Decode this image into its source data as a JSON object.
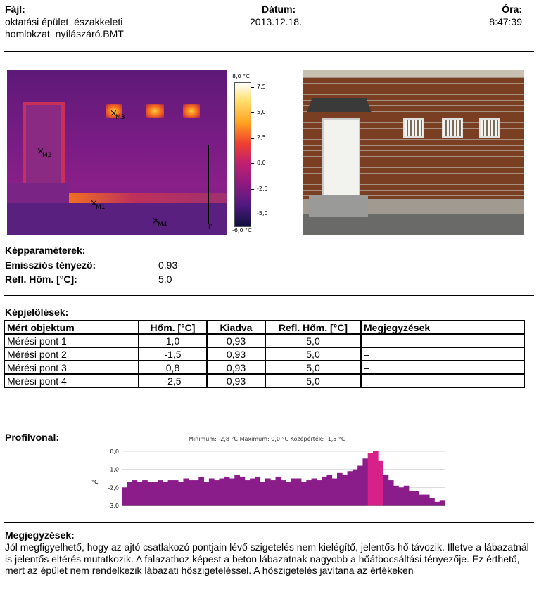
{
  "header": {
    "file_label": "Fájl:",
    "file_line1": "oktatási épület_északkeleti",
    "file_line2": "homlokzat_nyílászáró.BMT",
    "date_label": "Dátum:",
    "date_value": "2013.12.18.",
    "time_label": "Óra:",
    "time_value": "8:47:39"
  },
  "thermal": {
    "markers": [
      "M1",
      "M2",
      "M3",
      "M4"
    ],
    "profile_label": "P",
    "scale_max": "8,0 °C",
    "scale_min": "-6,0 °C",
    "scale_ticks": [
      "7,5",
      "5,0",
      "2,5",
      "0,0",
      "-2,5",
      "-5,0"
    ]
  },
  "params": {
    "title": "Képparaméterek:",
    "emissivity_label": "Emissziós tényező:",
    "emissivity_value": "0,93",
    "refl_label": "Refl. Hőm. [°C]:",
    "refl_value": "5,0"
  },
  "marks": {
    "title": "Képjelölések:",
    "headers": [
      "Mért objektum",
      "Hőm. [°C]",
      "Kiadva",
      "Refl. Hőm. [°C]",
      "Megjegyzések"
    ],
    "rows": [
      [
        "Mérési pont 1",
        "1,0",
        "0,93",
        "5,0",
        "–"
      ],
      [
        "Mérési pont 2",
        "-1,5",
        "0,93",
        "5,0",
        "–"
      ],
      [
        "Mérési pont 3",
        "0,8",
        "0,93",
        "5,0",
        "–"
      ],
      [
        "Mérési pont 4",
        "-2,5",
        "0,93",
        "5,0",
        "–"
      ]
    ]
  },
  "profile": {
    "title": "Profilvonal:",
    "stats": "Minimum: -2,8 °C Maximum: 0,0 °C Középérték: -1,5 °C"
  },
  "chart_data": {
    "type": "area",
    "ylabel": "°C",
    "ylim": [
      -3.0,
      0.0
    ],
    "yticks": [
      "0,0",
      "-1,0",
      "-2,0",
      "-3,0"
    ],
    "values": [
      -2.0,
      -1.7,
      -1.6,
      -1.7,
      -1.6,
      -1.7,
      -1.7,
      -1.6,
      -1.7,
      -1.6,
      -1.6,
      -1.7,
      -1.5,
      -1.6,
      -1.6,
      -1.4,
      -1.7,
      -1.5,
      -1.6,
      -1.5,
      -1.4,
      -1.5,
      -1.3,
      -1.4,
      -1.6,
      -1.5,
      -1.4,
      -1.7,
      -1.5,
      -1.6,
      -1.4,
      -1.6,
      -1.7,
      -1.5,
      -1.5,
      -1.7,
      -1.6,
      -1.5,
      -1.6,
      -1.4,
      -1.3,
      -1.5,
      -1.2,
      -1.3,
      -1.1,
      -1.0,
      -0.8,
      -0.4,
      -0.1,
      0.0,
      -0.5,
      -1.3,
      -1.6,
      -1.9,
      -2.0,
      -1.9,
      -2.2,
      -2.2,
      -2.4,
      -2.4,
      -2.6,
      -2.8,
      -2.7
    ],
    "highlight_range": [
      48,
      50
    ]
  },
  "notes": {
    "title": "Megjegyzések:",
    "text": "Jól megfigyelhető, hogy az ajtó csatlakozó pontjain lévő szigetelés nem kielégítő, jelentős hő távozik. Illetve a lábazatnál is jelentős eltérés mutatkozik. A falazathoz képest a beton lábazatnak nagyobb a hőátbocsáltási tényezője.  Ez érthető, mert az épület nem rendelkezik lábazati hőszigeteléssel. A hőszigetelés javítana az értékeken"
  }
}
